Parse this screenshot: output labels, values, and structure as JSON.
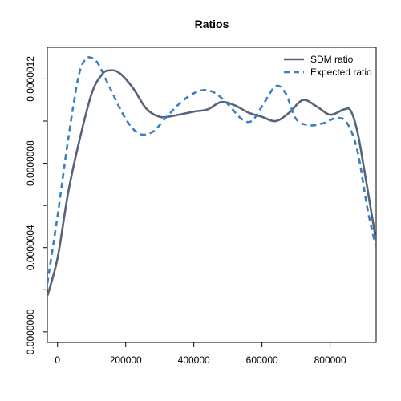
{
  "chart_data": {
    "type": "line",
    "title": "Ratios",
    "xlabel": "",
    "ylabel": "",
    "xlim": [
      -30000,
      935000
    ],
    "ylim": [
      -5e-08,
      1.35e-06
    ],
    "x_ticks": [
      0,
      200000,
      400000,
      600000,
      800000
    ],
    "x_tick_labels": [
      "0",
      "200000",
      "400000",
      "600000",
      "800000"
    ],
    "y_ticks": [
      0,
      4e-07,
      8e-07,
      1.2e-06
    ],
    "y_tick_labels": [
      "0.0000000",
      "0.0000004",
      "0.0000008",
      "0.0000012"
    ],
    "y_minor_ticks": [
      2e-07,
      6e-07,
      1e-06
    ],
    "grid": false,
    "legend_position": "top-right",
    "series": [
      {
        "name": "SDM ratio",
        "color": "#566378",
        "dash": "solid",
        "x": [
          -30000,
          0,
          30000,
          60000,
          100000,
          130000,
          150000,
          180000,
          220000,
          260000,
          300000,
          340000,
          400000,
          440000,
          480000,
          520000,
          560000,
          600000,
          640000,
          680000,
          720000,
          760000,
          800000,
          840000,
          860000,
          880000,
          900000,
          935000
        ],
        "y": [
          1.7e-07,
          3.5e-07,
          6.5e-07,
          8.8e-07,
          1.13e-06,
          1.22e-06,
          1.24e-06,
          1.23e-06,
          1.16e-06,
          1.06e-06,
          1.02e-06,
          1.025e-06,
          1.045e-06,
          1.055e-06,
          1.09e-06,
          1.075e-06,
          1.04e-06,
          1.02e-06,
          1e-06,
          1.04e-06,
          1.1e-06,
          1.07e-06,
          1.03e-06,
          1.055e-06,
          1.05e-06,
          9.5e-07,
          7.7e-07,
          4.3e-07
        ]
      },
      {
        "name": "Expected ratio",
        "color": "#3a7fc0",
        "dash": "dashed",
        "x": [
          -30000,
          0,
          30000,
          60000,
          80000,
          100000,
          120000,
          150000,
          200000,
          240000,
          280000,
          320000,
          370000,
          420000,
          460000,
          500000,
          540000,
          570000,
          600000,
          640000,
          670000,
          700000,
          740000,
          780000,
          820000,
          850000,
          880000,
          910000,
          935000
        ],
        "y": [
          2.3e-07,
          5.5e-07,
          9e-07,
          1.2e-06,
          1.29e-06,
          1.3e-06,
          1.27e-06,
          1.17e-06,
          1.01e-06,
          9.4e-07,
          9.5e-07,
          1.02e-06,
          1.1e-06,
          1.145e-06,
          1.135e-06,
          1.08e-06,
          1.01e-06,
          1e-06,
          1.07e-06,
          1.165e-06,
          1.13e-06,
          1.01e-06,
          9.8e-07,
          9.9e-07,
          1.015e-06,
          9.9e-07,
          8.6e-07,
          5.8e-07,
          4e-07
        ]
      }
    ]
  }
}
